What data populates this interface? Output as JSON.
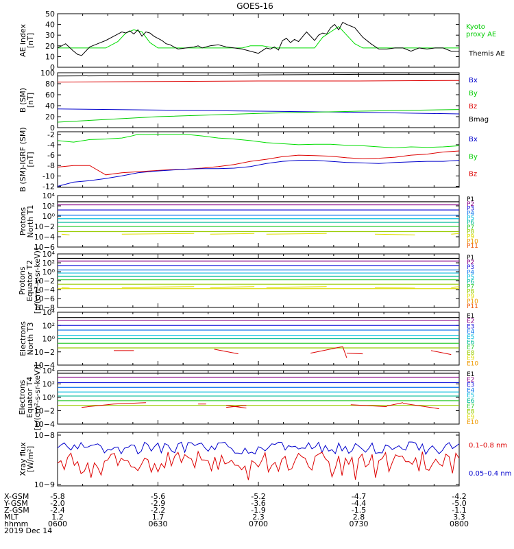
{
  "title": "GOES-16",
  "chart_data": {
    "type": "line",
    "title": "GOES-16",
    "date": "2019 Dec 14",
    "time_axis": {
      "ticks": [
        "0600",
        "0630",
        "0700",
        "0730",
        "0800"
      ],
      "ephemeris_labels": [
        "X-GSM",
        "Y-GSM",
        "Z-GSM",
        "MLT",
        "hhmm"
      ],
      "ephemeris": {
        "X-GSM": [
          "-5.8",
          "-5.6",
          "-5.2",
          "-4.7",
          "-4.2"
        ],
        "Y-GSM": [
          "-2.0",
          "-2.9",
          "-3.6",
          "-4.4",
          "-5.0"
        ],
        "Z-GSM": [
          "-2.4",
          "-2.2",
          "-1.9",
          "-1.5",
          "-1.1"
        ],
        "MLT": [
          "1.2",
          "1.7",
          "2.3",
          "2.8",
          "3.3"
        ]
      }
    },
    "panels": [
      {
        "id": "ae",
        "ylabel": [
          "AE index",
          "[nT]"
        ],
        "yticks": [
          "0",
          "10",
          "20",
          "30",
          "40",
          "50"
        ],
        "ylim": [
          0,
          50
        ],
        "scale": "linear",
        "legend": [
          {
            "label": [
              "Kyoto",
              "proxy AE"
            ],
            "color": "#00cc00"
          },
          {
            "label": [
              "Themis AE"
            ],
            "color": "#000000"
          }
        ],
        "series": [
          {
            "name": "Kyoto proxy AE",
            "color": "#00dd00",
            "x": [
              0,
              3,
              5,
              8,
              12,
              15,
              17,
              19,
              21,
              23,
              25,
              28,
              33,
              36,
              40,
              44,
              46,
              48,
              51,
              54,
              58,
              62,
              64,
              66,
              68,
              70,
              72,
              74,
              76,
              80,
              84,
              88,
              92,
              95,
              97,
              100
            ],
            "y": [
              18,
              18,
              18,
              18,
              18,
              24,
              32,
              35,
              33,
              23,
              18,
              18,
              18,
              18,
              18,
              18,
              18,
              20,
              20,
              18,
              18,
              18,
              18,
              28,
              33,
              38,
              30,
              22,
              18,
              18,
              18,
              18,
              18,
              18,
              18,
              18
            ]
          },
          {
            "name": "Themis AE",
            "color": "#000000",
            "x": [
              0,
              2,
              4,
              5,
              6,
              8,
              10,
              12,
              14,
              16,
              17,
              18,
              19,
              20,
              21,
              22,
              23,
              24,
              25,
              26,
              27,
              28,
              29,
              30,
              32,
              34,
              35,
              36,
              38,
              40,
              42,
              44,
              46,
              48,
              50,
              52,
              53,
              54,
              55,
              56,
              57,
              58,
              59,
              60,
              62,
              64,
              65,
              66,
              67,
              68,
              69,
              70,
              71,
              72,
              74,
              76,
              78,
              80,
              82,
              84,
              86,
              88,
              90,
              92,
              94,
              96,
              98,
              100
            ],
            "y": [
              18,
              22,
              15,
              12,
              11,
              19,
              22,
              25,
              29,
              33,
              32,
              34,
              31,
              35,
              29,
              33,
              32,
              29,
              27,
              25,
              22,
              21,
              19,
              17,
              18,
              19,
              20,
              18,
              20,
              21,
              19,
              18,
              17,
              15,
              13,
              18,
              17,
              19,
              16,
              25,
              27,
              23,
              26,
              24,
              33,
              25,
              30,
              32,
              31,
              37,
              40,
              35,
              42,
              40,
              37,
              28,
              22,
              17,
              17,
              18,
              18,
              15,
              18,
              17,
              18,
              18,
              15,
              15
            ]
          }
        ]
      },
      {
        "id": "b",
        "ylabel": [
          "B (SM)",
          "[nT]"
        ],
        "yticks": [
          "0",
          "20",
          "40",
          "60",
          "80",
          "100"
        ],
        "ylim": [
          0,
          100
        ],
        "scale": "linear",
        "legend": [
          {
            "label": [
              "Bx"
            ],
            "color": "#0000cc"
          },
          {
            "label": [
              "By"
            ],
            "color": "#00cc00"
          },
          {
            "label": [
              "Bz"
            ],
            "color": "#dd0000"
          },
          {
            "label": [
              "Bmag"
            ],
            "color": "#000000"
          }
        ],
        "series": [
          {
            "name": "Bmag",
            "color": "#000000",
            "x": [
              0,
              25,
              50,
              75,
              100
            ],
            "y": [
              94,
              95,
              96,
              97,
              97
            ]
          },
          {
            "name": "Bz",
            "color": "#dd0000",
            "x": [
              0,
              25,
              50,
              75,
              100
            ],
            "y": [
              83,
              84,
              85,
              85,
              86
            ]
          },
          {
            "name": "Bx",
            "color": "#0000cc",
            "x": [
              0,
              25,
              50,
              75,
              100
            ],
            "y": [
              34,
              32,
              30,
              28,
              25
            ]
          },
          {
            "name": "By",
            "color": "#00cc00",
            "x": [
              0,
              25,
              50,
              75,
              100
            ],
            "y": [
              10,
              20,
              26,
              30,
              33
            ]
          }
        ]
      },
      {
        "id": "bdiff",
        "ylabel": [
          "B (SM)-IGRF (SM)",
          "[nT]"
        ],
        "yticks": [
          "-12",
          "-10",
          "-8",
          "-6",
          "-4",
          "-2"
        ],
        "ylim": [
          -12.2,
          -1.5
        ],
        "scale": "linear",
        "legend": [
          {
            "label": [
              "Bx"
            ],
            "color": "#0000cc"
          },
          {
            "label": [
              "By"
            ],
            "color": "#00cc00"
          },
          {
            "label": [
              "Bz"
            ],
            "color": "#dd0000"
          }
        ],
        "series": [
          {
            "name": "By",
            "color": "#00dd00",
            "x": [
              0,
              4,
              8,
              12,
              16,
              18,
              20,
              22,
              24,
              28,
              32,
              36,
              40,
              44,
              48,
              52,
              56,
              60,
              64,
              68,
              72,
              76,
              80,
              84,
              88,
              92,
              96,
              100
            ],
            "y": [
              -3.2,
              -3.5,
              -3.0,
              -2.9,
              -2.7,
              -2.4,
              -2.0,
              -2.1,
              -2.0,
              -2.0,
              -2.0,
              -2.3,
              -2.7,
              -2.9,
              -3.2,
              -3.6,
              -3.8,
              -4.0,
              -3.9,
              -3.9,
              -4.1,
              -4.2,
              -4.4,
              -4.6,
              -4.4,
              -4.5,
              -4.4,
              -4.2
            ]
          },
          {
            "name": "Bz",
            "color": "#dd0000",
            "x": [
              0,
              4,
              8,
              12,
              16,
              20,
              24,
              28,
              32,
              36,
              40,
              44,
              48,
              52,
              56,
              60,
              64,
              68,
              72,
              76,
              80,
              84,
              88,
              92,
              96,
              100
            ],
            "y": [
              -8.3,
              -8.0,
              -8.0,
              -9.8,
              -9.4,
              -9.2,
              -9.0,
              -8.8,
              -8.7,
              -8.5,
              -8.2,
              -7.8,
              -7.2,
              -6.8,
              -6.3,
              -6.0,
              -6.1,
              -6.2,
              -6.5,
              -6.7,
              -6.6,
              -6.4,
              -6.0,
              -5.8,
              -5.4,
              -5.2
            ]
          },
          {
            "name": "Bx",
            "color": "#0000cc",
            "x": [
              0,
              4,
              8,
              12,
              16,
              20,
              24,
              28,
              32,
              36,
              40,
              44,
              48,
              52,
              56,
              60,
              64,
              68,
              72,
              76,
              80,
              84,
              88,
              92,
              96,
              100
            ],
            "y": [
              -12.0,
              -11.2,
              -10.9,
              -10.5,
              -10.0,
              -9.4,
              -9.1,
              -8.9,
              -8.7,
              -8.6,
              -8.6,
              -8.5,
              -8.2,
              -7.6,
              -7.2,
              -7.0,
              -7.0,
              -7.2,
              -7.4,
              -7.5,
              -7.6,
              -7.4,
              -7.3,
              -7.2,
              -7.2,
              -7.0
            ]
          }
        ]
      },
      {
        "id": "p_north",
        "ylabel": [
          "Protons",
          "North T1"
        ],
        "yticks": [
          "10−6",
          "10−4",
          "10−2",
          "10⁰",
          "10²",
          "10⁴"
        ],
        "ylim": [
          -6,
          4
        ],
        "scale": "log",
        "channels": [
          "P1",
          "P2",
          "P3",
          "P4",
          "P5",
          "P6",
          "P7",
          "P8",
          "P9",
          "P10",
          "P11"
        ],
        "levels": [
          2.8,
          2.2,
          1.2,
          0.2,
          -0.5,
          -1.2,
          -2.0,
          -3.0
        ]
      },
      {
        "id": "p_equator",
        "ylabel": [
          "Protons",
          "Equator T2",
          "[p/(cm²-s-sr-keV)]"
        ],
        "yticks": [
          "10−8",
          "10−6",
          "10−4",
          "10−2",
          "10⁰",
          "10²",
          "10⁴"
        ],
        "ylim": [
          -8,
          4
        ],
        "scale": "log",
        "channels": [
          "P1",
          "P2",
          "P3",
          "P4",
          "P5",
          "P6",
          "P7",
          "P8",
          "P9",
          "P10",
          "P11"
        ],
        "levels": [
          3.0,
          2.4,
          1.4,
          0.4,
          -0.3,
          -1.0,
          -1.8,
          -2.8,
          -3.8
        ]
      },
      {
        "id": "e_north",
        "ylabel": [
          "Electrons",
          "North T3"
        ],
        "yticks": [
          "10−4",
          "10−2",
          "10⁰",
          "10²",
          "10⁴"
        ],
        "ylim": [
          -4,
          4
        ],
        "scale": "log",
        "channels": [
          "E1",
          "E2",
          "E3",
          "E4",
          "E5",
          "E6",
          "E7",
          "E8",
          "E9",
          "E10"
        ],
        "levels": [
          3.2,
          2.8,
          2.0,
          1.3,
          0.5,
          0.0,
          -0.7,
          -1.4
        ]
      },
      {
        "id": "e_equator",
        "ylabel": [
          "Electrons",
          "Equator T4",
          "[e/(cm²-s-sr-keV)]"
        ],
        "yticks": [
          "10−4",
          "10−2",
          "10⁰",
          "10²",
          "10⁴"
        ],
        "ylim": [
          -4,
          4
        ],
        "scale": "log",
        "channels": [
          "E1",
          "E2",
          "E3",
          "E4",
          "E5",
          "E6",
          "E7",
          "E8",
          "E9",
          "E10"
        ],
        "levels": [
          3.6,
          3.0,
          2.2,
          1.5,
          0.8,
          0.2,
          -0.5,
          -1.2
        ]
      },
      {
        "id": "xray",
        "ylabel": [
          "Xray flux",
          "[W/m²]"
        ],
        "yticks": [
          "10−8",
          "10−9"
        ],
        "ylim": [
          -9,
          -8
        ],
        "scale": "log",
        "legend": [
          {
            "label": [
              "0.1–0.8 nm"
            ],
            "color": "#dd0000"
          },
          {
            "label": [
              "0.05–0.4 nm"
            ],
            "color": "#0000cc"
          }
        ]
      }
    ]
  }
}
